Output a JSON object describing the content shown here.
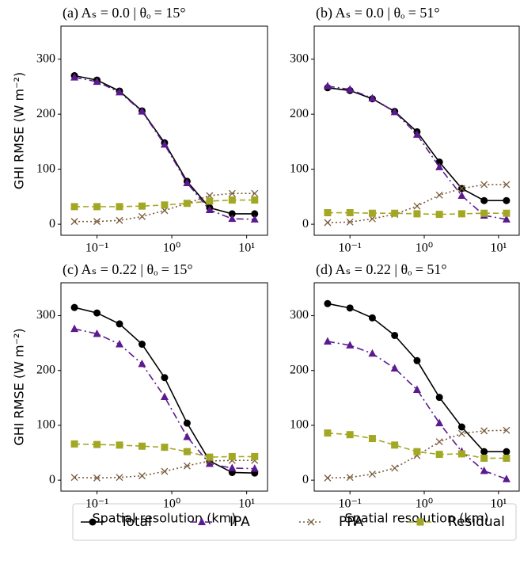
{
  "chart_data": [
    {
      "type": "line",
      "title": "(a) Aₛ = 0.0 | θₒ = 15°",
      "ylabel": "GHI RMSE (W m⁻²)",
      "xscale": "log",
      "grid": false,
      "x": [
        0.05,
        0.1,
        0.2,
        0.4,
        0.8,
        1.6,
        3.2,
        6.4,
        12.8
      ],
      "xlim": [
        0.033,
        19
      ],
      "xticks": [
        {
          "value": 0.1,
          "label": "10⁻¹"
        },
        {
          "value": 1,
          "label": "10⁰"
        },
        {
          "value": 10,
          "label": "10¹"
        }
      ],
      "ylim": [
        -20,
        360
      ],
      "yticks": [
        0,
        100,
        200,
        300
      ],
      "series": [
        {
          "name": "Total",
          "color": "#000000",
          "marker": "circle",
          "dash": "solid",
          "values": [
            270,
            262,
            242,
            206,
            148,
            78,
            30,
            19,
            19
          ]
        },
        {
          "name": "IPA",
          "color": "#5b1a8e",
          "marker": "triangle",
          "dash": "dashdot",
          "values": [
            267,
            259,
            240,
            205,
            145,
            75,
            26,
            10,
            9
          ]
        },
        {
          "name": "PPA",
          "color": "#7a5a3a",
          "marker": "x",
          "dash": "dotted",
          "values": [
            5,
            5,
            7,
            14,
            25,
            38,
            52,
            56,
            56
          ]
        },
        {
          "name": "Residual",
          "color": "#a3a824",
          "marker": "square",
          "dash": "dashed",
          "values": [
            32,
            32,
            32,
            33,
            35,
            38,
            42,
            44,
            44
          ]
        }
      ]
    },
    {
      "type": "line",
      "title": "(b) Aₛ = 0.0 | θₒ = 51°",
      "xscale": "log",
      "grid": false,
      "x": [
        0.05,
        0.1,
        0.2,
        0.4,
        0.8,
        1.6,
        3.2,
        6.4,
        12.8
      ],
      "xlim": [
        0.033,
        19
      ],
      "xticks": [
        {
          "value": 0.1,
          "label": "10⁻¹"
        },
        {
          "value": 1,
          "label": "10⁰"
        },
        {
          "value": 10,
          "label": "10¹"
        }
      ],
      "ylim": [
        -20,
        360
      ],
      "yticks": [
        0,
        100,
        200,
        300
      ],
      "series": [
        {
          "name": "Total",
          "color": "#000000",
          "marker": "circle",
          "dash": "solid",
          "values": [
            248,
            243,
            228,
            205,
            168,
            113,
            65,
            43,
            43
          ]
        },
        {
          "name": "IPA",
          "color": "#5b1a8e",
          "marker": "triangle",
          "dash": "dashdot",
          "values": [
            251,
            245,
            229,
            204,
            163,
            104,
            52,
            16,
            9
          ]
        },
        {
          "name": "PPA",
          "color": "#7a5a3a",
          "marker": "x",
          "dash": "dotted",
          "values": [
            3,
            4,
            10,
            18,
            33,
            53,
            65,
            72,
            72
          ]
        },
        {
          "name": "Residual",
          "color": "#a3a824",
          "marker": "square",
          "dash": "dashed",
          "values": [
            21,
            21,
            20,
            20,
            19,
            18,
            19,
            20,
            20
          ]
        }
      ]
    },
    {
      "type": "line",
      "title": "(c) Aₛ = 0.22 | θₒ = 15°",
      "ylabel": "GHI RMSE (W m⁻²)",
      "xlabel": "Spatial resolution (km)",
      "xscale": "log",
      "grid": false,
      "x": [
        0.05,
        0.1,
        0.2,
        0.4,
        0.8,
        1.6,
        3.2,
        6.4,
        12.8
      ],
      "xlim": [
        0.033,
        19
      ],
      "xticks": [
        {
          "value": 0.1,
          "label": "10⁻¹"
        },
        {
          "value": 1,
          "label": "10⁰"
        },
        {
          "value": 10,
          "label": "10¹"
        }
      ],
      "ylim": [
        -20,
        360
      ],
      "yticks": [
        0,
        100,
        200,
        300
      ],
      "series": [
        {
          "name": "Total",
          "color": "#000000",
          "marker": "circle",
          "dash": "solid",
          "values": [
            315,
            305,
            285,
            248,
            187,
            104,
            35,
            14,
            13
          ]
        },
        {
          "name": "IPA",
          "color": "#5b1a8e",
          "marker": "triangle",
          "dash": "dashdot",
          "values": [
            276,
            267,
            248,
            212,
            152,
            79,
            30,
            22,
            21
          ]
        },
        {
          "name": "PPA",
          "color": "#7a5a3a",
          "marker": "x",
          "dash": "dotted",
          "values": [
            5,
            4,
            5,
            8,
            16,
            26,
            35,
            36,
            36
          ]
        },
        {
          "name": "Residual",
          "color": "#a3a824",
          "marker": "square",
          "dash": "dashed",
          "values": [
            66,
            65,
            64,
            62,
            60,
            52,
            42,
            43,
            43
          ]
        }
      ]
    },
    {
      "type": "line",
      "title": "(d) Aₛ = 0.22 | θₒ = 51°",
      "xlabel": "Spatial resolution (km)",
      "xscale": "log",
      "grid": false,
      "x": [
        0.05,
        0.1,
        0.2,
        0.4,
        0.8,
        1.6,
        3.2,
        6.4,
        12.8
      ],
      "xlim": [
        0.033,
        19
      ],
      "xticks": [
        {
          "value": 0.1,
          "label": "10⁻¹"
        },
        {
          "value": 1,
          "label": "10⁰"
        },
        {
          "value": 10,
          "label": "10¹"
        }
      ],
      "ylim": [
        -20,
        360
      ],
      "yticks": [
        0,
        100,
        200,
        300
      ],
      "series": [
        {
          "name": "Total",
          "color": "#000000",
          "marker": "circle",
          "dash": "solid",
          "values": [
            322,
            314,
            296,
            264,
            218,
            151,
            97,
            52,
            52
          ]
        },
        {
          "name": "IPA",
          "color": "#5b1a8e",
          "marker": "triangle",
          "dash": "dashdot",
          "values": [
            253,
            246,
            231,
            204,
            165,
            104,
            52,
            17,
            2
          ]
        },
        {
          "name": "PPA",
          "color": "#7a5a3a",
          "marker": "x",
          "dash": "dotted",
          "values": [
            4,
            5,
            11,
            22,
            45,
            70,
            85,
            90,
            91
          ]
        },
        {
          "name": "Residual",
          "color": "#a3a824",
          "marker": "square",
          "dash": "dashed",
          "values": [
            86,
            83,
            76,
            64,
            52,
            47,
            48,
            40,
            40
          ]
        }
      ]
    }
  ]
}
